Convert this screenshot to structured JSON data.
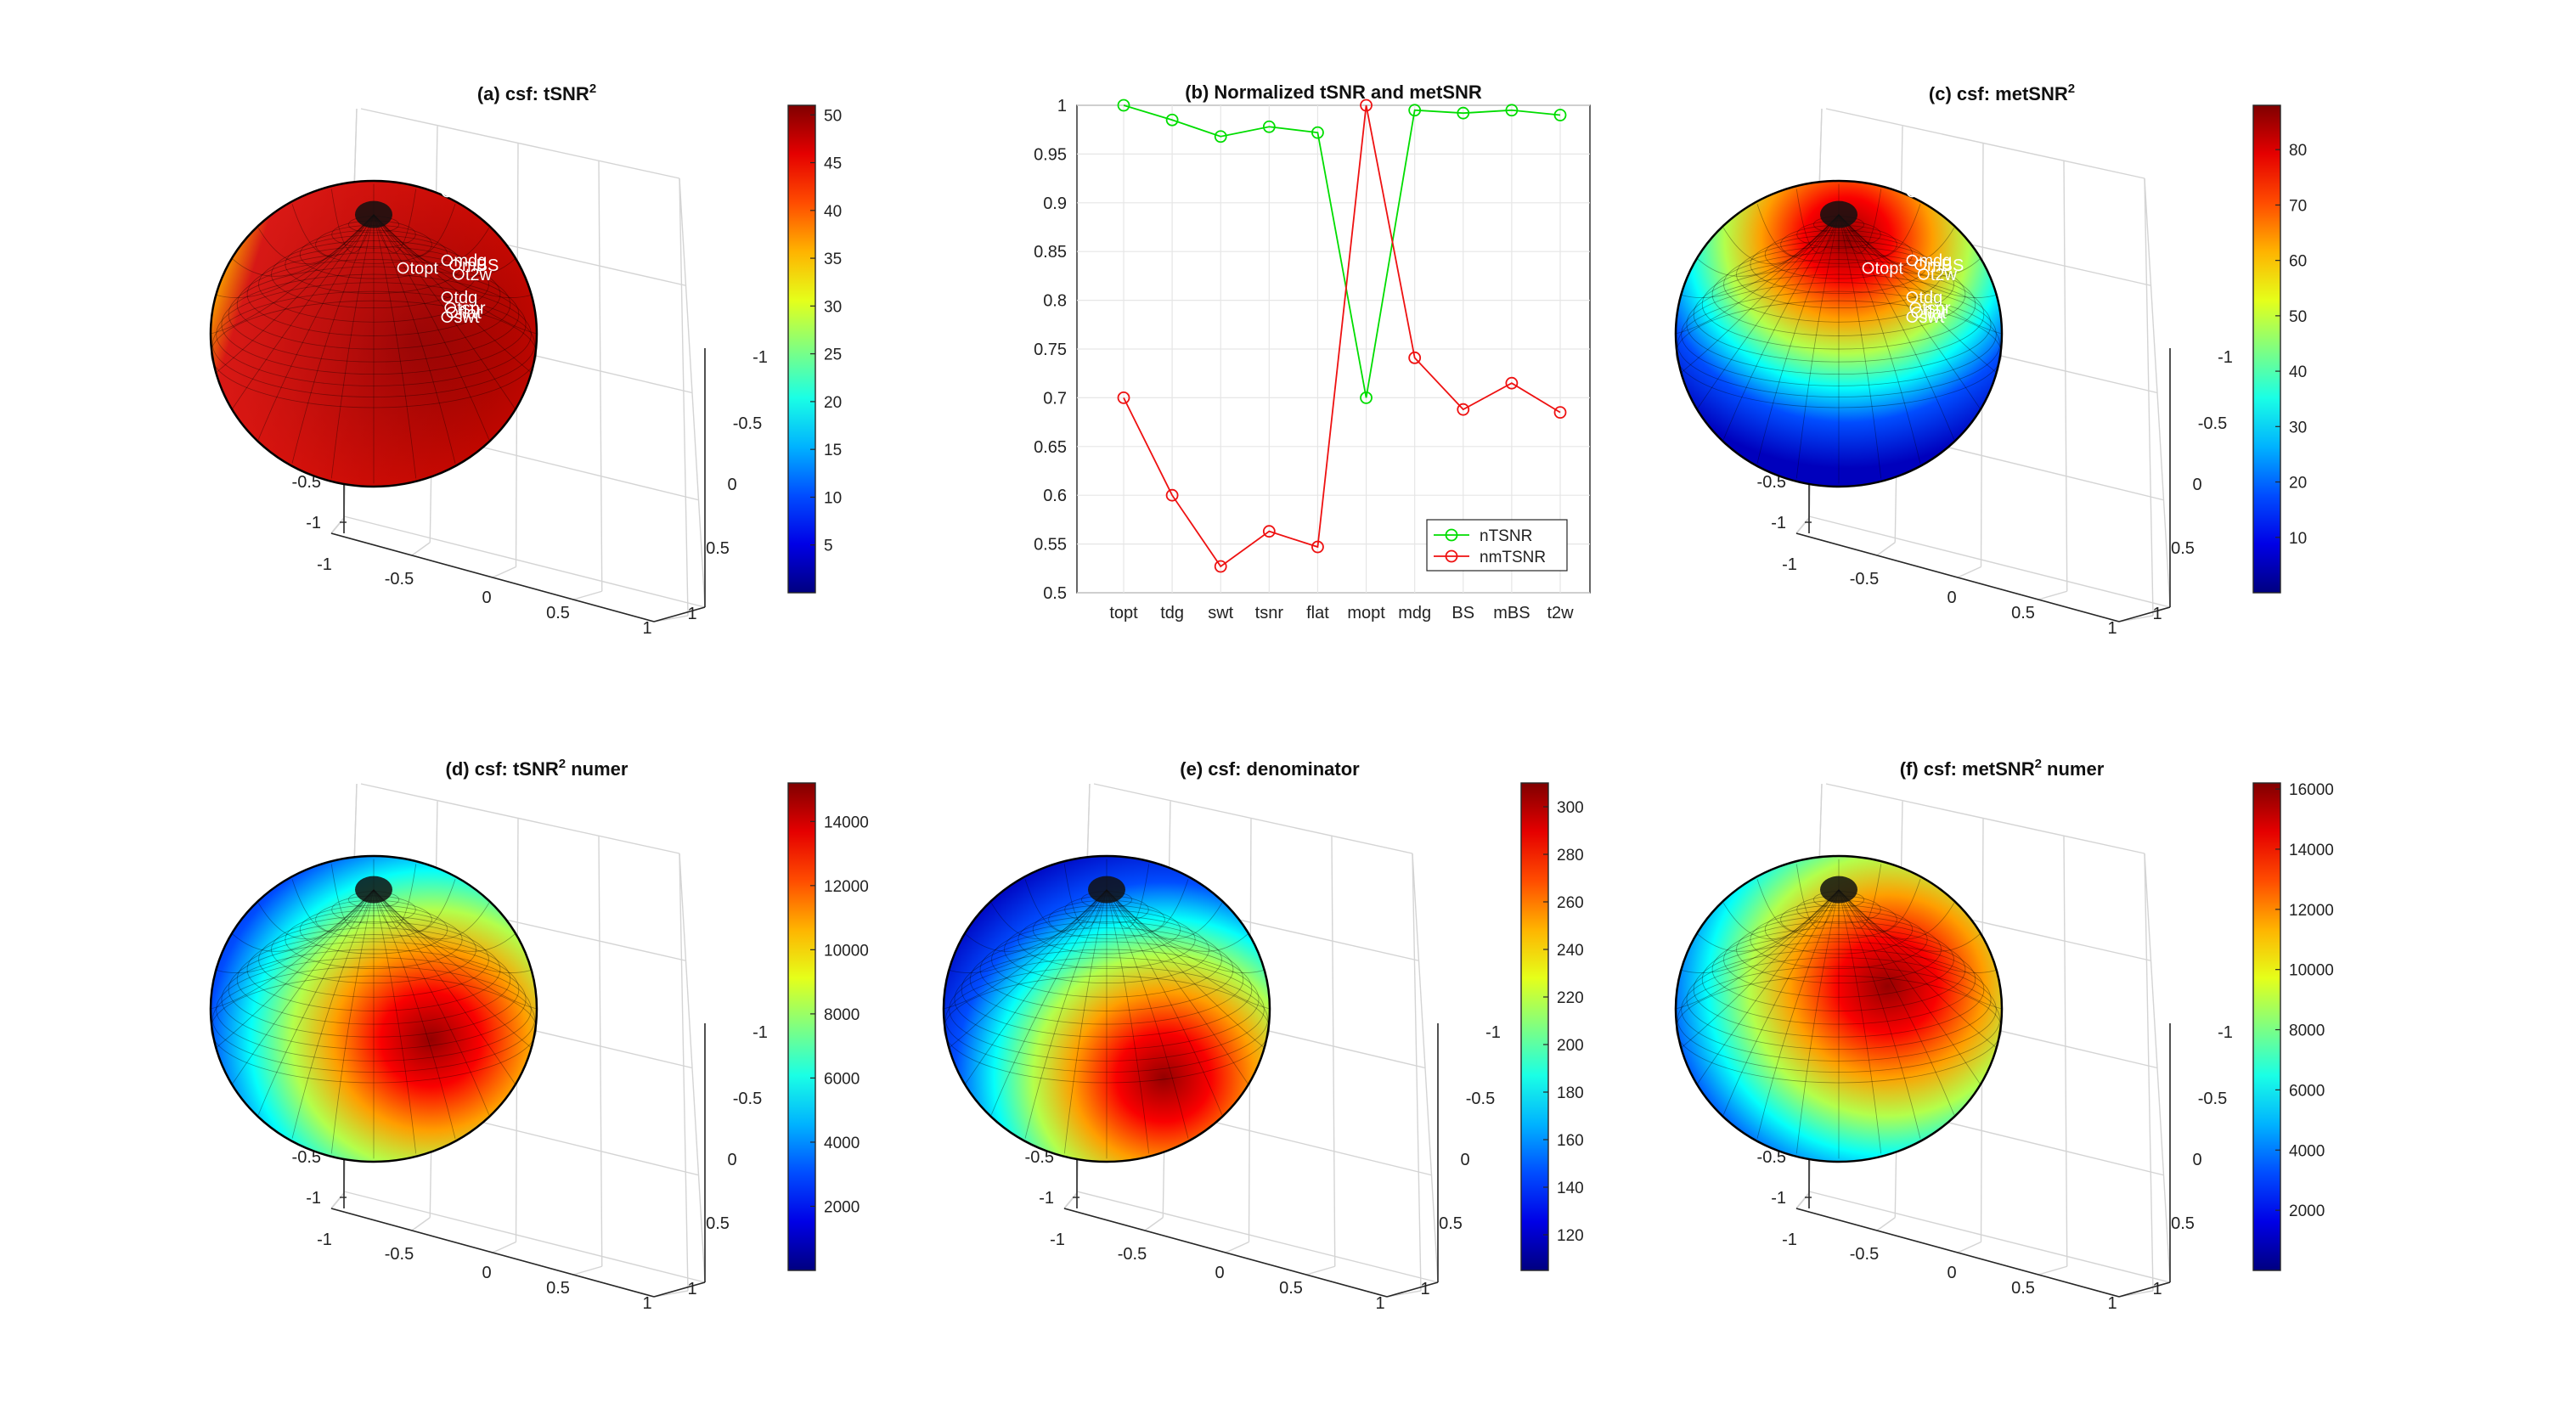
{
  "chart_data": [
    {
      "id": "a",
      "type": "surface3d",
      "title": "(a) csf: tSNR",
      "title_sup": "2",
      "title_suffix": "",
      "xticks": [
        "-1",
        "-0.5",
        "0",
        "0.5",
        "1"
      ],
      "yticks": [
        "-1",
        "-0.5",
        "0",
        "0.5",
        "1"
      ],
      "zticks": [
        "1",
        "0.5",
        "0",
        "-0.5",
        "-1"
      ],
      "colorbar": {
        "min": 0,
        "max": 51,
        "ticks": [
          "5",
          "10",
          "15",
          "20",
          "25",
          "30",
          "35",
          "40",
          "45",
          "50"
        ]
      },
      "annotations": [
        "mopt",
        "topt",
        "mdg",
        "mBS",
        "t2w",
        "tdg",
        "tsnr",
        "flat",
        "swt"
      ]
    },
    {
      "id": "b",
      "type": "line",
      "title": "(b) Normalized tSNR and metSNR",
      "categories": [
        "topt",
        "tdg",
        "swt",
        "tsnr",
        "flat",
        "mopt",
        "mdg",
        "BS",
        "mBS",
        "t2w"
      ],
      "ylim": [
        0.5,
        1
      ],
      "yticks": [
        "0.5",
        "0.55",
        "0.6",
        "0.65",
        "0.7",
        "0.75",
        "0.8",
        "0.85",
        "0.9",
        "0.95",
        "1"
      ],
      "grid": true,
      "legend_position": "bottom-right",
      "series": [
        {
          "name": "nTSNR",
          "color": "#00dd00",
          "values": [
            1.0,
            0.985,
            0.968,
            0.978,
            0.972,
            0.7,
            0.995,
            0.992,
            0.995,
            0.99
          ]
        },
        {
          "name": "nmTSNR",
          "color": "#ee1111",
          "values": [
            0.7,
            0.6,
            0.527,
            0.563,
            0.547,
            1.0,
            0.741,
            0.688,
            0.715,
            0.685
          ]
        }
      ]
    },
    {
      "id": "c",
      "type": "surface3d",
      "title": "(c) csf: metSNR",
      "title_sup": "2",
      "title_suffix": "",
      "xticks": [
        "-1",
        "-0.5",
        "0",
        "0.5",
        "1"
      ],
      "yticks": [
        "-1",
        "-0.5",
        "0",
        "0.5",
        "1"
      ],
      "zticks": [
        "1",
        "0.5",
        "0",
        "-0.5",
        "-1"
      ],
      "colorbar": {
        "min": 0,
        "max": 88,
        "ticks": [
          "10",
          "20",
          "30",
          "40",
          "50",
          "60",
          "70",
          "80"
        ]
      },
      "annotations": [
        "mopt",
        "topt",
        "mdg",
        "mBS",
        "t2w",
        "tdg",
        "tsnr",
        "flat",
        "swt"
      ]
    },
    {
      "id": "d",
      "type": "surface3d",
      "title": "(d) csf: tSNR",
      "title_sup": "2",
      "title_suffix": " numer",
      "xticks": [
        "-1",
        "-0.5",
        "0",
        "0.5",
        "1"
      ],
      "yticks": [
        "-1",
        "-0.5",
        "0",
        "0.5",
        "1"
      ],
      "zticks": [
        "1",
        "0.5",
        "0",
        "-0.5",
        "-1"
      ],
      "colorbar": {
        "min": 0,
        "max": 15200,
        "ticks": [
          "2000",
          "4000",
          "6000",
          "8000",
          "10000",
          "12000",
          "14000"
        ]
      },
      "annotations": []
    },
    {
      "id": "e",
      "type": "surface3d",
      "title": "(e) csf: denominator",
      "title_sup": "",
      "title_suffix": "",
      "xticks": [
        "-1",
        "-0.5",
        "0",
        "0.5",
        "1"
      ],
      "yticks": [
        "-1",
        "-0.5",
        "0",
        "0.5",
        "1"
      ],
      "zticks": [
        "1",
        "0.5",
        "0",
        "-0.5",
        "-1"
      ],
      "colorbar": {
        "min": 105,
        "max": 310,
        "ticks": [
          "120",
          "140",
          "160",
          "180",
          "200",
          "220",
          "240",
          "260",
          "280",
          "300"
        ]
      },
      "annotations": []
    },
    {
      "id": "f",
      "type": "surface3d",
      "title": "(f) csf: metSNR",
      "title_sup": "2",
      "title_suffix": " numer",
      "xticks": [
        "-1",
        "-0.5",
        "0",
        "0.5",
        "1"
      ],
      "yticks": [
        "-1",
        "-0.5",
        "0",
        "0.5",
        "1"
      ],
      "zticks": [
        "1",
        "0.5",
        "0",
        "-0.5",
        "-1"
      ],
      "colorbar": {
        "min": 0,
        "max": 16200,
        "ticks": [
          "2000",
          "4000",
          "6000",
          "8000",
          "10000",
          "12000",
          "14000",
          "16000"
        ]
      },
      "annotations": []
    }
  ]
}
